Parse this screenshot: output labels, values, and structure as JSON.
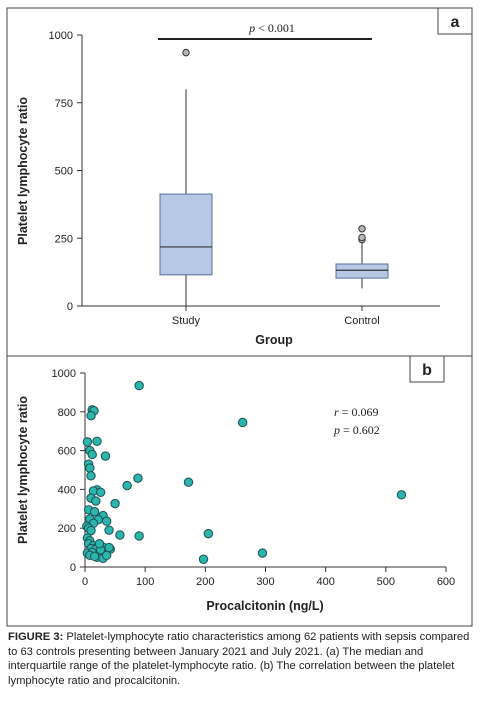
{
  "figure": {
    "caption_label": "FIGURE 3:",
    "caption_text": " Platelet-lymphocyte ratio characteristics among 62 patients with sepsis compared to 63 controls presenting between January 2021 and July 2021. (a) The median and interquartile range of the platelet-lymphocyte ratio. (b) The correlation between the platelet lymphocyte ratio and procalcitonin."
  },
  "colors": {
    "box_fill": "#b6c8e6",
    "box_stroke": "#5a6f94",
    "point_fill": "#2bb5ad",
    "point_stroke": "#1d4f52",
    "outlier_fill": "#b9b9b9",
    "frame": "#444444",
    "panel_label_fill": "#ffffff"
  },
  "chart_data": [
    {
      "panel": "a",
      "type": "box",
      "ylabel": "Platelet lymphocyte ratio",
      "xlabel": "Group",
      "ylim": [
        0,
        1000
      ],
      "yticks": [
        0,
        250,
        500,
        750,
        1000
      ],
      "significance": {
        "text_p": "p",
        "text_rest": " < 0.001",
        "between": [
          "Study",
          "Control"
        ]
      },
      "groups": [
        {
          "name": "Study",
          "min": 0,
          "q1": 115,
          "median": 218,
          "q3": 413,
          "max": 800,
          "outliers": [
            935
          ]
        },
        {
          "name": "Control",
          "min": 65,
          "q1": 103,
          "median": 132,
          "q3": 155,
          "max": 235,
          "outliers": [
            245,
            253,
            285
          ]
        }
      ]
    },
    {
      "panel": "b",
      "type": "scatter",
      "ylabel": "Platelet lymphocyte ratio",
      "xlabel": "Procalcitonin (ng/L)",
      "xlim": [
        0,
        600
      ],
      "ylim": [
        0,
        1000
      ],
      "xticks": [
        0,
        100,
        200,
        300,
        400,
        500,
        600
      ],
      "yticks": [
        0,
        200,
        400,
        600,
        800,
        1000
      ],
      "stats": [
        {
          "sym": "r",
          "rest": " = 0.069"
        },
        {
          "sym": "p",
          "rest": " = 0.602"
        }
      ],
      "points": [
        [
          90,
          935
        ],
        [
          12,
          810
        ],
        [
          15,
          805
        ],
        [
          10,
          780
        ],
        [
          262,
          745
        ],
        [
          4,
          645
        ],
        [
          20,
          648
        ],
        [
          8,
          600
        ],
        [
          12,
          580
        ],
        [
          34,
          572
        ],
        [
          6,
          530
        ],
        [
          8,
          510
        ],
        [
          10,
          470
        ],
        [
          88,
          458
        ],
        [
          172,
          437
        ],
        [
          70,
          420
        ],
        [
          20,
          398
        ],
        [
          14,
          392
        ],
        [
          26,
          385
        ],
        [
          10,
          355
        ],
        [
          526,
          372
        ],
        [
          18,
          340
        ],
        [
          50,
          327
        ],
        [
          6,
          295
        ],
        [
          16,
          285
        ],
        [
          30,
          265
        ],
        [
          8,
          248
        ],
        [
          22,
          244
        ],
        [
          36,
          236
        ],
        [
          14,
          225
        ],
        [
          3,
          210
        ],
        [
          6,
          200
        ],
        [
          10,
          188
        ],
        [
          40,
          190
        ],
        [
          205,
          172
        ],
        [
          90,
          160
        ],
        [
          58,
          165
        ],
        [
          4,
          150
        ],
        [
          8,
          135
        ],
        [
          6,
          120
        ],
        [
          14,
          110
        ],
        [
          22,
          108
        ],
        [
          30,
          102
        ],
        [
          10,
          95
        ],
        [
          18,
          92
        ],
        [
          26,
          88
        ],
        [
          42,
          92
        ],
        [
          4,
          72
        ],
        [
          12,
          75
        ],
        [
          8,
          60
        ],
        [
          20,
          50
        ],
        [
          30,
          45
        ],
        [
          295,
          72
        ],
        [
          197,
          40
        ],
        [
          36,
          60
        ],
        [
          24,
          120
        ],
        [
          40,
          100
        ],
        [
          16,
          55
        ]
      ]
    }
  ]
}
